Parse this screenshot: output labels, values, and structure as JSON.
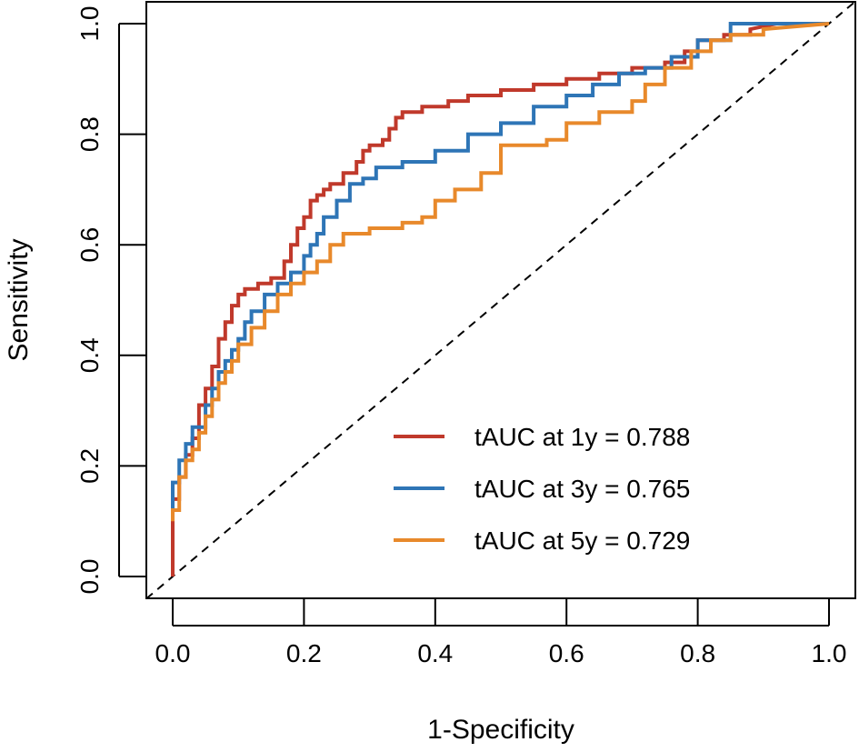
{
  "chart_data": {
    "type": "line",
    "title": "",
    "xlabel": "1-Specificity",
    "ylabel": "Sensitivity",
    "xlim": [
      0,
      1
    ],
    "ylim": [
      0,
      1
    ],
    "xticks": [
      "0.0",
      "0.2",
      "0.4",
      "0.6",
      "0.8",
      "1.0"
    ],
    "yticks": [
      "0.0",
      "0.2",
      "0.4",
      "0.6",
      "0.8",
      "1.0"
    ],
    "grid": false,
    "legend_position": "bottom-right",
    "reference_line": {
      "x": [
        0,
        1
      ],
      "y": [
        0,
        1
      ],
      "style": "dashed",
      "color": "#000000"
    },
    "series": [
      {
        "name": "tAUC at 1y = 0.788",
        "color": "#C0392B",
        "x": [
          0,
          0,
          0.01,
          0.01,
          0.02,
          0.02,
          0.03,
          0.03,
          0.04,
          0.04,
          0.05,
          0.05,
          0.06,
          0.06,
          0.07,
          0.07,
          0.08,
          0.08,
          0.09,
          0.09,
          0.1,
          0.1,
          0.11,
          0.11,
          0.13,
          0.13,
          0.15,
          0.15,
          0.17,
          0.17,
          0.18,
          0.18,
          0.19,
          0.19,
          0.2,
          0.2,
          0.21,
          0.21,
          0.22,
          0.22,
          0.23,
          0.23,
          0.24,
          0.24,
          0.26,
          0.26,
          0.28,
          0.28,
          0.29,
          0.29,
          0.3,
          0.3,
          0.32,
          0.32,
          0.33,
          0.33,
          0.34,
          0.34,
          0.35,
          0.35,
          0.38,
          0.38,
          0.42,
          0.42,
          0.45,
          0.45,
          0.5,
          0.5,
          0.55,
          0.55,
          0.6,
          0.6,
          0.65,
          0.65,
          0.7,
          0.7,
          0.75,
          0.75,
          0.78,
          0.78,
          0.8,
          0.8,
          0.84,
          0.84,
          0.88,
          0.88,
          0.92,
          1
        ],
        "y": [
          0,
          0.14,
          0.14,
          0.18,
          0.18,
          0.22,
          0.22,
          0.25,
          0.25,
          0.31,
          0.31,
          0.34,
          0.34,
          0.38,
          0.38,
          0.43,
          0.43,
          0.46,
          0.46,
          0.49,
          0.49,
          0.51,
          0.51,
          0.52,
          0.52,
          0.53,
          0.53,
          0.54,
          0.54,
          0.57,
          0.57,
          0.6,
          0.6,
          0.63,
          0.63,
          0.65,
          0.65,
          0.68,
          0.68,
          0.69,
          0.69,
          0.7,
          0.7,
          0.71,
          0.71,
          0.73,
          0.73,
          0.75,
          0.75,
          0.77,
          0.77,
          0.78,
          0.78,
          0.79,
          0.79,
          0.81,
          0.81,
          0.83,
          0.83,
          0.84,
          0.84,
          0.85,
          0.85,
          0.86,
          0.86,
          0.87,
          0.87,
          0.88,
          0.88,
          0.89,
          0.89,
          0.9,
          0.9,
          0.91,
          0.91,
          0.92,
          0.92,
          0.93,
          0.93,
          0.95,
          0.95,
          0.97,
          0.97,
          0.98,
          0.98,
          0.99,
          1,
          1
        ]
      },
      {
        "name": "tAUC at 3y = 0.765",
        "color": "#2E75B6",
        "x": [
          0,
          0,
          0.01,
          0.01,
          0.02,
          0.02,
          0.03,
          0.03,
          0.05,
          0.05,
          0.06,
          0.06,
          0.07,
          0.07,
          0.08,
          0.08,
          0.09,
          0.09,
          0.1,
          0.1,
          0.11,
          0.11,
          0.12,
          0.12,
          0.14,
          0.14,
          0.16,
          0.16,
          0.18,
          0.18,
          0.2,
          0.2,
          0.21,
          0.21,
          0.22,
          0.22,
          0.23,
          0.23,
          0.25,
          0.25,
          0.27,
          0.27,
          0.29,
          0.29,
          0.31,
          0.31,
          0.35,
          0.35,
          0.4,
          0.4,
          0.45,
          0.45,
          0.5,
          0.5,
          0.55,
          0.55,
          0.6,
          0.6,
          0.64,
          0.64,
          0.68,
          0.68,
          0.72,
          0.72,
          0.76,
          0.76,
          0.8,
          0.8,
          0.85,
          0.85,
          1
        ],
        "y": [
          0.12,
          0.17,
          0.17,
          0.21,
          0.21,
          0.24,
          0.24,
          0.27,
          0.27,
          0.31,
          0.31,
          0.34,
          0.34,
          0.37,
          0.37,
          0.39,
          0.39,
          0.41,
          0.41,
          0.43,
          0.43,
          0.46,
          0.46,
          0.48,
          0.48,
          0.51,
          0.51,
          0.53,
          0.53,
          0.55,
          0.55,
          0.58,
          0.58,
          0.6,
          0.6,
          0.62,
          0.62,
          0.65,
          0.65,
          0.68,
          0.68,
          0.71,
          0.71,
          0.72,
          0.72,
          0.74,
          0.74,
          0.75,
          0.75,
          0.77,
          0.77,
          0.8,
          0.8,
          0.82,
          0.82,
          0.85,
          0.85,
          0.87,
          0.87,
          0.89,
          0.89,
          0.91,
          0.91,
          0.92,
          0.92,
          0.94,
          0.94,
          0.97,
          0.97,
          1,
          1
        ]
      },
      {
        "name": "tAUC at 5y = 0.729",
        "color": "#E8892B",
        "x": [
          0,
          0,
          0.01,
          0.01,
          0.02,
          0.02,
          0.03,
          0.03,
          0.04,
          0.04,
          0.05,
          0.05,
          0.06,
          0.06,
          0.07,
          0.07,
          0.08,
          0.08,
          0.09,
          0.09,
          0.1,
          0.1,
          0.12,
          0.12,
          0.14,
          0.14,
          0.16,
          0.16,
          0.18,
          0.18,
          0.2,
          0.2,
          0.22,
          0.22,
          0.24,
          0.24,
          0.26,
          0.26,
          0.3,
          0.3,
          0.35,
          0.35,
          0.38,
          0.38,
          0.4,
          0.4,
          0.43,
          0.43,
          0.47,
          0.47,
          0.5,
          0.5,
          0.57,
          0.57,
          0.6,
          0.6,
          0.65,
          0.65,
          0.7,
          0.7,
          0.72,
          0.72,
          0.75,
          0.75,
          0.79,
          0.79,
          0.82,
          0.82,
          0.85,
          0.85,
          0.9,
          0.9,
          1
        ],
        "y": [
          0.1,
          0.12,
          0.12,
          0.18,
          0.18,
          0.21,
          0.21,
          0.23,
          0.23,
          0.26,
          0.26,
          0.29,
          0.29,
          0.32,
          0.32,
          0.35,
          0.35,
          0.37,
          0.37,
          0.39,
          0.39,
          0.42,
          0.42,
          0.45,
          0.45,
          0.48,
          0.48,
          0.51,
          0.51,
          0.53,
          0.53,
          0.55,
          0.55,
          0.57,
          0.57,
          0.6,
          0.6,
          0.62,
          0.62,
          0.63,
          0.63,
          0.64,
          0.64,
          0.65,
          0.65,
          0.68,
          0.68,
          0.7,
          0.7,
          0.73,
          0.73,
          0.78,
          0.78,
          0.79,
          0.79,
          0.82,
          0.82,
          0.84,
          0.84,
          0.86,
          0.86,
          0.89,
          0.89,
          0.92,
          0.92,
          0.95,
          0.95,
          0.97,
          0.97,
          0.98,
          0.98,
          0.99,
          1
        ]
      }
    ]
  }
}
